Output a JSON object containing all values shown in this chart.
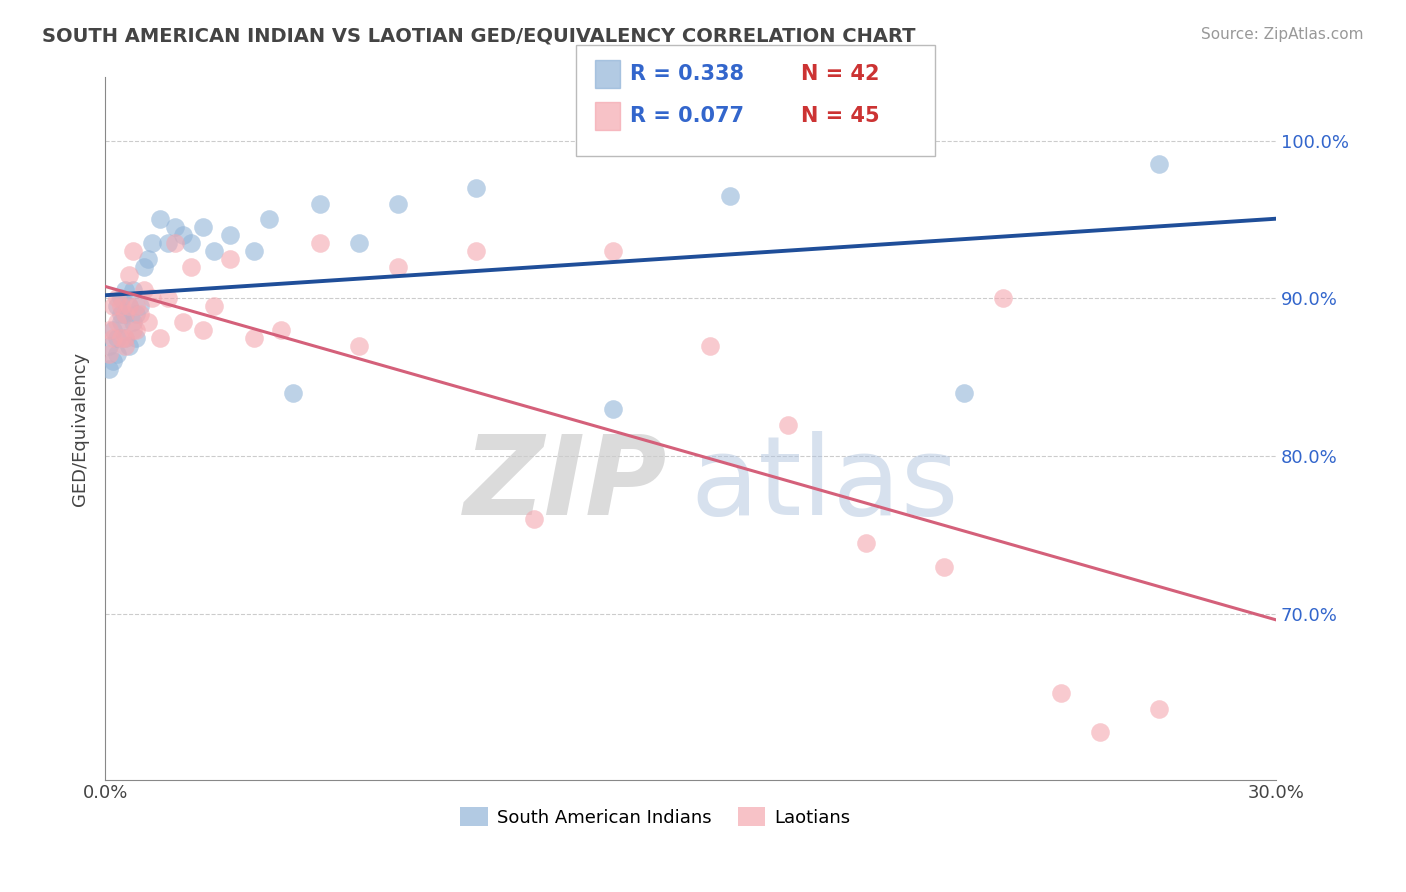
{
  "title": "SOUTH AMERICAN INDIAN VS LAOTIAN GED/EQUIVALENCY CORRELATION CHART",
  "source": "Source: ZipAtlas.com",
  "ylabel": "GED/Equivalency",
  "ytick_labels": [
    "70.0%",
    "80.0%",
    "90.0%",
    "100.0%"
  ],
  "ytick_values": [
    0.7,
    0.8,
    0.9,
    1.0
  ],
  "xlim": [
    0.0,
    0.3
  ],
  "ylim": [
    0.595,
    1.04
  ],
  "legend_r_blue": "R = 0.338",
  "legend_n_blue": "N = 42",
  "legend_r_pink": "R = 0.077",
  "legend_n_pink": "N = 45",
  "blue_color": "#92B4D8",
  "pink_color": "#F4A8B0",
  "trendline_blue": "#1F4E99",
  "trendline_pink": "#D4607A",
  "blue_x": [
    0.001,
    0.001,
    0.002,
    0.002,
    0.003,
    0.003,
    0.003,
    0.004,
    0.004,
    0.004,
    0.005,
    0.005,
    0.005,
    0.006,
    0.006,
    0.007,
    0.007,
    0.008,
    0.008,
    0.009,
    0.01,
    0.011,
    0.012,
    0.014,
    0.016,
    0.018,
    0.02,
    0.022,
    0.025,
    0.028,
    0.032,
    0.038,
    0.042,
    0.048,
    0.055,
    0.065,
    0.075,
    0.095,
    0.13,
    0.16,
    0.22,
    0.27
  ],
  "blue_y": [
    0.87,
    0.855,
    0.88,
    0.86,
    0.895,
    0.875,
    0.865,
    0.885,
    0.9,
    0.89,
    0.875,
    0.89,
    0.905,
    0.87,
    0.895,
    0.885,
    0.905,
    0.89,
    0.875,
    0.895,
    0.92,
    0.925,
    0.935,
    0.95,
    0.935,
    0.945,
    0.94,
    0.935,
    0.945,
    0.93,
    0.94,
    0.93,
    0.95,
    0.84,
    0.96,
    0.935,
    0.96,
    0.97,
    0.83,
    0.965,
    0.84,
    0.985
  ],
  "pink_x": [
    0.001,
    0.001,
    0.002,
    0.002,
    0.003,
    0.003,
    0.004,
    0.004,
    0.005,
    0.005,
    0.005,
    0.006,
    0.006,
    0.007,
    0.007,
    0.008,
    0.008,
    0.009,
    0.01,
    0.011,
    0.012,
    0.014,
    0.016,
    0.018,
    0.02,
    0.022,
    0.025,
    0.028,
    0.032,
    0.038,
    0.045,
    0.055,
    0.065,
    0.075,
    0.095,
    0.11,
    0.13,
    0.155,
    0.175,
    0.195,
    0.215,
    0.23,
    0.245,
    0.255,
    0.27
  ],
  "pink_y": [
    0.88,
    0.865,
    0.895,
    0.875,
    0.9,
    0.885,
    0.895,
    0.875,
    0.89,
    0.875,
    0.87,
    0.915,
    0.895,
    0.88,
    0.93,
    0.895,
    0.88,
    0.89,
    0.905,
    0.885,
    0.9,
    0.875,
    0.9,
    0.935,
    0.885,
    0.92,
    0.88,
    0.895,
    0.925,
    0.875,
    0.88,
    0.935,
    0.87,
    0.92,
    0.93,
    0.76,
    0.93,
    0.87,
    0.82,
    0.745,
    0.73,
    0.9,
    0.65,
    0.625,
    0.64
  ]
}
